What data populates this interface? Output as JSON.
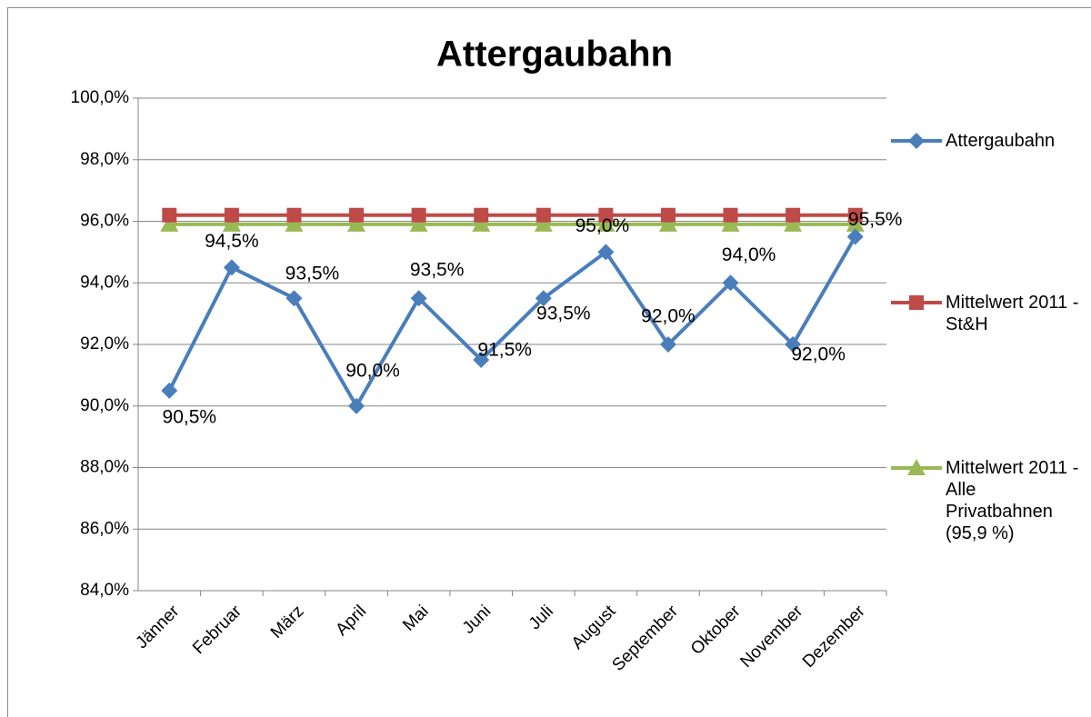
{
  "chart_data": {
    "type": "line",
    "title": "Attergaubahn",
    "categories": [
      "Jänner",
      "Februar",
      "März",
      "April",
      "Mai",
      "Juni",
      "Juli",
      "August",
      "September",
      "Oktober",
      "November",
      "Dezember"
    ],
    "series": [
      {
        "name": "Attergaubahn",
        "color": "#4a7ebb",
        "marker": "diamond",
        "values": [
          90.5,
          94.5,
          93.5,
          90.0,
          93.5,
          91.5,
          93.5,
          95.0,
          92.0,
          94.0,
          92.0,
          95.5
        ],
        "value_labels": [
          "90,5%",
          "94,5%",
          "93,5%",
          "90,0%",
          "93,5%",
          "91,5%",
          "93,5%",
          "95,0%",
          "92,0%",
          "94,0%",
          "92,0%",
          "95,5%"
        ]
      },
      {
        "name": "Mittelwert 2011 - St&H",
        "color": "#be4b48",
        "marker": "square",
        "values": [
          96.2,
          96.2,
          96.2,
          96.2,
          96.2,
          96.2,
          96.2,
          96.2,
          96.2,
          96.2,
          96.2,
          96.2
        ]
      },
      {
        "name": "Mittelwert 2011 - Alle Privatbahnen (95,9 %)",
        "color": "#98b954",
        "marker": "triangle",
        "values": [
          95.9,
          95.9,
          95.9,
          95.9,
          95.9,
          95.9,
          95.9,
          95.9,
          95.9,
          95.9,
          95.9,
          95.9
        ]
      }
    ],
    "ylim": [
      84,
      100
    ],
    "yticks": [
      {
        "value": 84,
        "label": "84,0%"
      },
      {
        "value": 86,
        "label": "86,0%"
      },
      {
        "value": 88,
        "label": "88,0%"
      },
      {
        "value": 90,
        "label": "90,0%"
      },
      {
        "value": 92,
        "label": "92,0%"
      },
      {
        "value": 94,
        "label": "94,0%"
      },
      {
        "value": 96,
        "label": "96,0%"
      },
      {
        "value": 98,
        "label": "98,0%"
      },
      {
        "value": 100,
        "label": "100,0%"
      }
    ],
    "grid": true,
    "legend": "right"
  }
}
